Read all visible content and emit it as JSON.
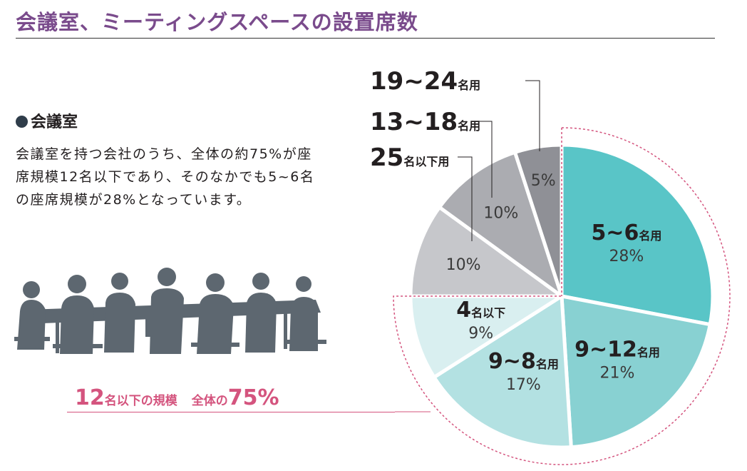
{
  "title": "会議室、ミーティングスペースの設置席数",
  "section": {
    "heading": "会議室",
    "body": "会議室を持つ会社のうち、全体の約75%が座席規模12名以下であり、そのなかでも5~6名の座席規模が28%となっています。"
  },
  "summary": {
    "part1_num": "12",
    "part1_text": "名以下の規模",
    "part2_text": "全体の",
    "part2_num": "75%"
  },
  "colors": {
    "title": "#7a4b8c",
    "accent_pink": "#d4547e",
    "silhouette": "#5d6770"
  },
  "chart_data": {
    "type": "pie",
    "title": "会議室、ミーティングスペースの設置席数",
    "unit": "%",
    "slices": [
      {
        "num": "5~6",
        "unit": "名用",
        "label": "5~6名用",
        "value": 28,
        "pct": "28%",
        "color": "#59c5c7",
        "label_inside": true
      },
      {
        "num": "9~12",
        "unit": "名用",
        "label": "9~12名用",
        "value": 21,
        "pct": "21%",
        "color": "#88d1d2",
        "label_inside": true
      },
      {
        "num": "9~8",
        "unit": "名用",
        "label": "9~8名用",
        "value": 17,
        "pct": "17%",
        "color": "#b3e1e2",
        "label_inside": true
      },
      {
        "num": "4",
        "unit": "名以下",
        "label": "4名以下",
        "value": 9,
        "pct": "9%",
        "color": "#d9eff0",
        "label_inside": true
      },
      {
        "num": "25",
        "unit": "名以下用",
        "label": "25名以下用",
        "value": 10,
        "pct": "10%",
        "color": "#c6c7cb",
        "label_inside": false
      },
      {
        "num": "13~18",
        "unit": "名用",
        "label": "13~18名用",
        "value": 10,
        "pct": "10%",
        "color": "#abacb1",
        "label_inside": false
      },
      {
        "num": "19~24",
        "unit": "名用",
        "label": "19~24名用",
        "value": 5,
        "pct": "5%",
        "color": "#8f9096",
        "label_inside": false
      }
    ],
    "highlight": "12名以下の規模 全体の75%"
  }
}
